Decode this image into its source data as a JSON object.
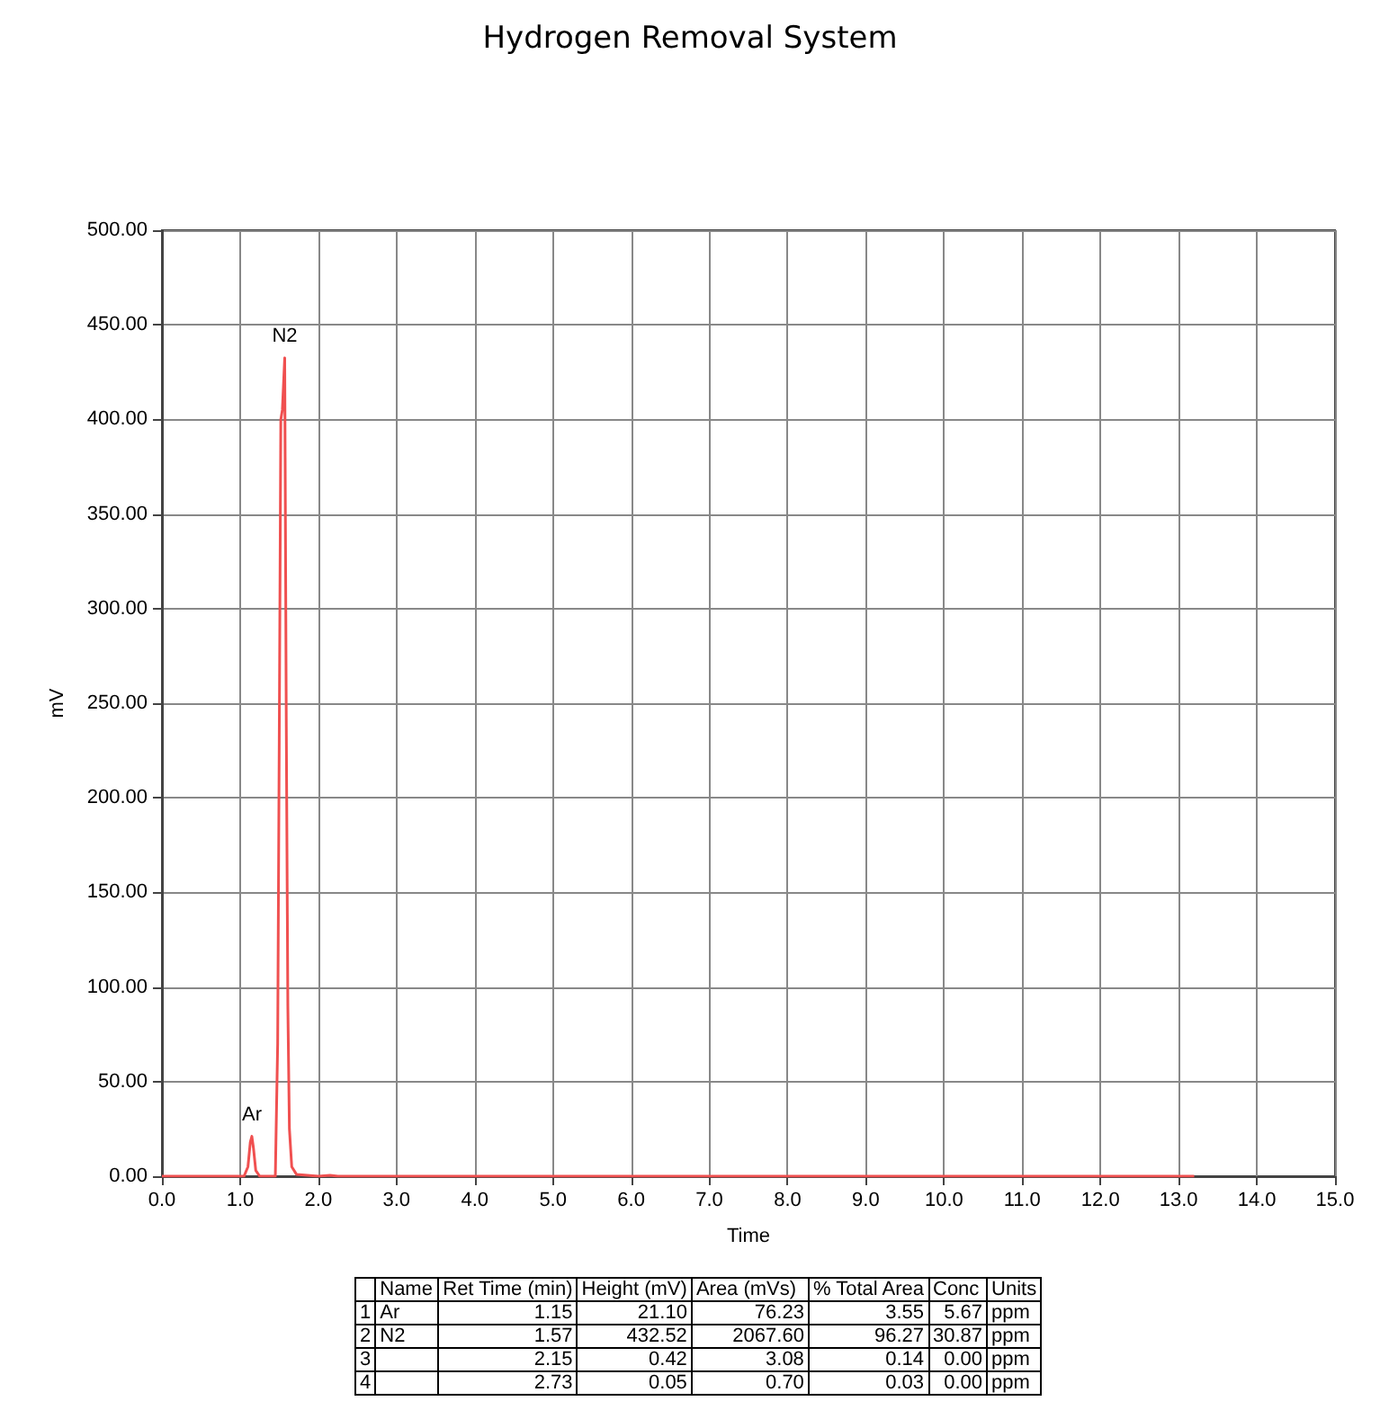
{
  "chart_data": {
    "type": "line",
    "title": "Hydrogen Removal System",
    "xlabel": "Time",
    "ylabel": "mV",
    "x": [
      0,
      1.05,
      1.1,
      1.13,
      1.15,
      1.17,
      1.2,
      1.25,
      1.45,
      1.48,
      1.5,
      1.52,
      1.54,
      1.57,
      1.59,
      1.61,
      1.63,
      1.66,
      1.72,
      2.0,
      2.15,
      2.25,
      13.2
    ],
    "series": [
      {
        "color": "#f05050",
        "values": [
          0,
          0,
          5,
          18,
          21.1,
          15,
          3,
          0,
          0,
          70,
          230,
          400,
          405,
          432.52,
          240,
          90,
          25,
          5,
          1,
          0,
          0.42,
          0,
          0
        ]
      }
    ],
    "xlim": [
      0,
      15
    ],
    "ylim": [
      0,
      500
    ],
    "xticks": [
      {
        "value": 0,
        "label": "0.0"
      },
      {
        "value": 1,
        "label": "1.0"
      },
      {
        "value": 2,
        "label": "2.0"
      },
      {
        "value": 3,
        "label": "3.0"
      },
      {
        "value": 4,
        "label": "4.0"
      },
      {
        "value": 5,
        "label": "5.0"
      },
      {
        "value": 6,
        "label": "6.0"
      },
      {
        "value": 7,
        "label": "7.0"
      },
      {
        "value": 8,
        "label": "8.0"
      },
      {
        "value": 9,
        "label": "9.0"
      },
      {
        "value": 10,
        "label": "10.0"
      },
      {
        "value": 11,
        "label": "11.0"
      },
      {
        "value": 12,
        "label": "12.0"
      },
      {
        "value": 13,
        "label": "13.0"
      },
      {
        "value": 14,
        "label": "14.0"
      },
      {
        "value": 15,
        "label": "15.0"
      }
    ],
    "yticks": [
      {
        "value": 0,
        "label": "0.00"
      },
      {
        "value": 50,
        "label": "50.00"
      },
      {
        "value": 100,
        "label": "100.00"
      },
      {
        "value": 150,
        "label": "150.00"
      },
      {
        "value": 200,
        "label": "200.00"
      },
      {
        "value": 250,
        "label": "250.00"
      },
      {
        "value": 300,
        "label": "300.00"
      },
      {
        "value": 350,
        "label": "350.00"
      },
      {
        "value": 400,
        "label": "400.00"
      },
      {
        "value": 450,
        "label": "450.00"
      },
      {
        "value": 500,
        "label": "500.00"
      }
    ],
    "grid": true,
    "marker": "none",
    "line_style": "solid",
    "annotations": [
      {
        "text": "Ar",
        "x": 1.15,
        "y": 21.1
      },
      {
        "text": "N2",
        "x": 1.57,
        "y": 432.52
      },
      null,
      "Name",
      "Ret Time (min)",
      "Height (mV)",
      "Area (mVs)",
      "% Total Area",
      "Conc",
      "Units",
      "1",
      "Ar",
      "1.15",
      "21.10",
      "76.23",
      "3.55",
      "5.67",
      "ppm",
      "2",
      "N2",
      "1.57",
      "432.52",
      "2067.60",
      "96.27",
      "30.87",
      "ppm",
      "3",
      null,
      "2.15",
      "0.42",
      "3.08",
      "0.14",
      "0.00",
      "ppm",
      "4",
      null,
      "2.73",
      "0.05",
      "0.70",
      "0.03",
      "0.00",
      "ppm"
    ]
  }
}
